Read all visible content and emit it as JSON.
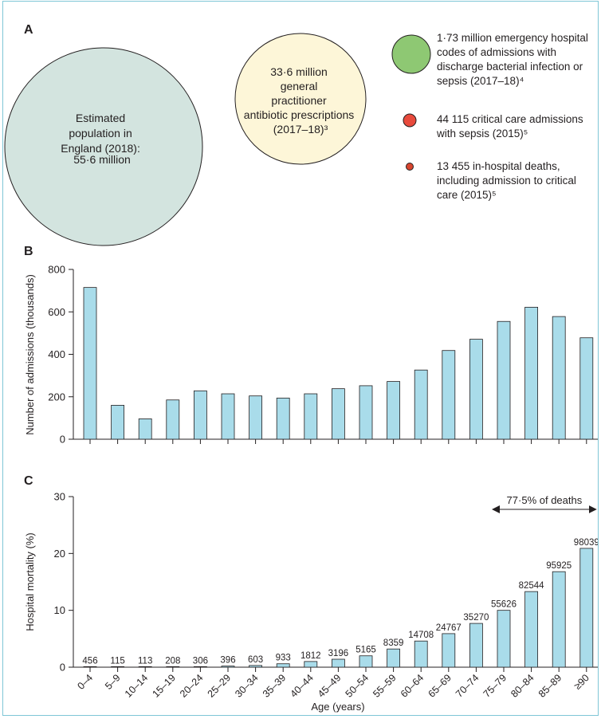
{
  "panels": {
    "a": "A",
    "b": "B",
    "c": "C"
  },
  "circles": [
    {
      "lines": [
        "Estimated",
        "population in",
        "England (2018):",
        "",
        "55·6 million"
      ],
      "color": "#d3e4df"
    },
    {
      "lines": [
        "33·6 million",
        "general",
        "practitioner",
        "antibiotic prescriptions",
        "(2017–18)³"
      ],
      "color": "#fdf6d8"
    }
  ],
  "legend": [
    {
      "lines": [
        "1·73 million emergency hospital",
        "codes of admissions with",
        "discharge bacterial infection or",
        "sepsis (2017–18)⁴"
      ],
      "color": "#8ec873"
    },
    {
      "lines": [
        "44 115 critical care admissions",
        "with sepsis (2015)⁵"
      ],
      "color": "#e84a3c"
    },
    {
      "lines": [
        "13 455 in-hospital deaths,",
        "including admission to critical",
        "care (2015)⁵"
      ],
      "color": "#d8452f"
    }
  ],
  "colors": {
    "bar": "#a9dcea",
    "axis": "#231f20"
  },
  "chart_data": [
    {
      "type": "bar",
      "panel": "B",
      "categories": [
        "0–4",
        "5–9",
        "10–14",
        "15–19",
        "20–24",
        "25–29",
        "30–34",
        "35–39",
        "40–44",
        "45–49",
        "50–54",
        "55–59",
        "60–64",
        "65–69",
        "70–74",
        "75–79",
        "80–84",
        "85–89",
        "≥90"
      ],
      "values": [
        715,
        160,
        96,
        185,
        228,
        214,
        204,
        194,
        214,
        238,
        252,
        272,
        326,
        418,
        471,
        555,
        622,
        578,
        478
      ],
      "ylabel": "Number of admissions (thousands)",
      "ylim": [
        0,
        800
      ],
      "yticks": [
        0,
        200,
        400,
        600,
        800
      ]
    },
    {
      "type": "bar",
      "panel": "C",
      "categories": [
        "0–4",
        "5–9",
        "10–14",
        "15–19",
        "20–24",
        "25–29",
        "30–34",
        "35–39",
        "40–44",
        "45–49",
        "50–54",
        "55–59",
        "60–64",
        "65–69",
        "70–74",
        "75–79",
        "80–84",
        "85–89",
        "≥90"
      ],
      "values": [
        0.1,
        0.1,
        0.1,
        0.1,
        0.1,
        0.2,
        0.3,
        0.6,
        1.0,
        1.4,
        2.0,
        3.2,
        4.6,
        5.9,
        7.7,
        10.0,
        13.3,
        16.8,
        20.9
      ],
      "data_labels": [
        "456",
        "115",
        "113",
        "208",
        "306",
        "396",
        "603",
        "933",
        "1812",
        "3196",
        "5165",
        "8359",
        "14708",
        "24767",
        "35270",
        "55626",
        "82544",
        "95925",
        "98039"
      ],
      "xlabel": "Age (years)",
      "ylabel": "Hospital mortality (%)",
      "ylim": [
        0,
        30
      ],
      "yticks": [
        0,
        10,
        20,
        30
      ],
      "annotation": {
        "text": "77·5% of deaths",
        "from_category": "75–79",
        "to_category": "≥90"
      }
    }
  ]
}
